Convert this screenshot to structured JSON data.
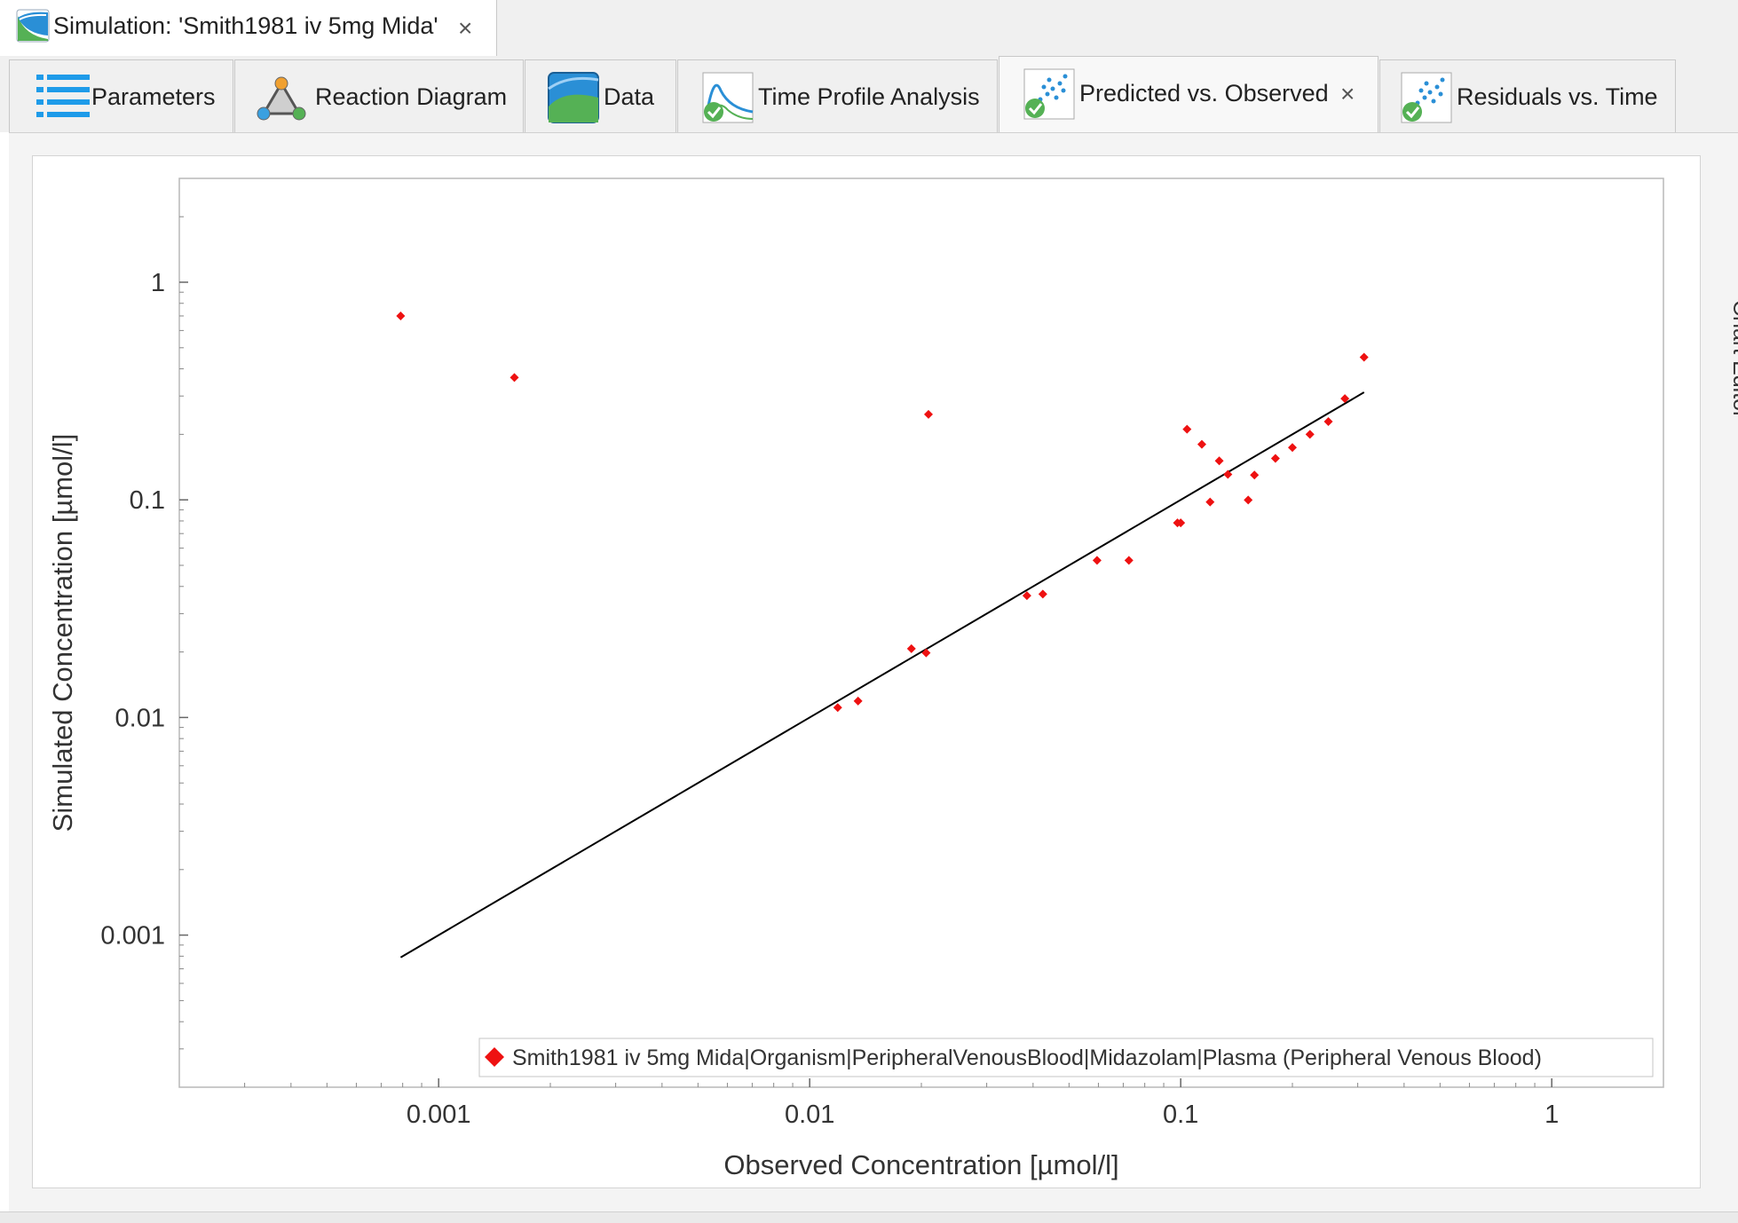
{
  "document_tab": {
    "title": "Simulation: 'Smith1981 iv 5mg Mida'",
    "close": "×"
  },
  "tabs": [
    {
      "label": "Parameters",
      "icon": "parameters-list-icon"
    },
    {
      "label": "Reaction Diagram",
      "icon": "reaction-diagram-icon"
    },
    {
      "label": "Data",
      "icon": "data-icon"
    },
    {
      "label": "Time Profile Analysis",
      "icon": "time-profile-analysis-icon"
    },
    {
      "label": "Predicted vs. Observed",
      "icon": "predicted-vs-observed-icon",
      "active": true,
      "close": "×"
    },
    {
      "label": "Residuals vs. Time",
      "icon": "residuals-vs-time-icon"
    }
  ],
  "side_panel": {
    "chart_editor": "Chart Editor"
  },
  "colors": {
    "marker": "#ee1111",
    "identity_line": "#000000",
    "tab_background": "#f0f0f0"
  },
  "chart_data": {
    "type": "scatter",
    "xscale": "log",
    "yscale": "log",
    "xlabel": "Observed Concentration [µmol/l]",
    "ylabel": "Simulated Concentration [µmol/l]",
    "xlim": [
      0.0002,
      2
    ],
    "ylim": [
      0.0002,
      3
    ],
    "xticks": [
      {
        "v": 0.001,
        "label": "0.001"
      },
      {
        "v": 0.01,
        "label": "0.01"
      },
      {
        "v": 0.1,
        "label": "0.1"
      },
      {
        "v": 1,
        "label": "1"
      }
    ],
    "yticks": [
      {
        "v": 0.001,
        "label": "0.001"
      },
      {
        "v": 0.01,
        "label": "0.01"
      },
      {
        "v": 0.1,
        "label": "0.1"
      },
      {
        "v": 1,
        "label": "1"
      }
    ],
    "legend_position": "bottom-right",
    "series": [
      {
        "name": "Smith1981 iv 5mg Mida|Organism|PeripheralVenousBlood|Midazolam|Plasma (Peripheral Venous Blood)",
        "marker": "diamond",
        "color": "#ee1111",
        "points": [
          [
            0.00079,
            0.7
          ],
          [
            0.0016,
            0.365
          ],
          [
            0.0119,
            0.0111
          ],
          [
            0.0135,
            0.0119
          ],
          [
            0.0188,
            0.0207
          ],
          [
            0.0206,
            0.0198
          ],
          [
            0.0209,
            0.247
          ],
          [
            0.0385,
            0.0363
          ],
          [
            0.0425,
            0.0369
          ],
          [
            0.0595,
            0.0527
          ],
          [
            0.0725,
            0.0527
          ],
          [
            0.098,
            0.0784
          ],
          [
            0.1,
            0.0784
          ],
          [
            0.104,
            0.211
          ],
          [
            0.114,
            0.18
          ],
          [
            0.12,
            0.0977
          ],
          [
            0.127,
            0.151
          ],
          [
            0.134,
            0.131
          ],
          [
            0.152,
            0.0998
          ],
          [
            0.158,
            0.13
          ],
          [
            0.18,
            0.155
          ],
          [
            0.2,
            0.174
          ],
          [
            0.223,
            0.2
          ],
          [
            0.25,
            0.229
          ],
          [
            0.277,
            0.292
          ],
          [
            0.312,
            0.452
          ]
        ]
      }
    ],
    "identity_line": {
      "from": [
        0.00079,
        0.00079
      ],
      "to": [
        0.312,
        0.312
      ]
    }
  }
}
